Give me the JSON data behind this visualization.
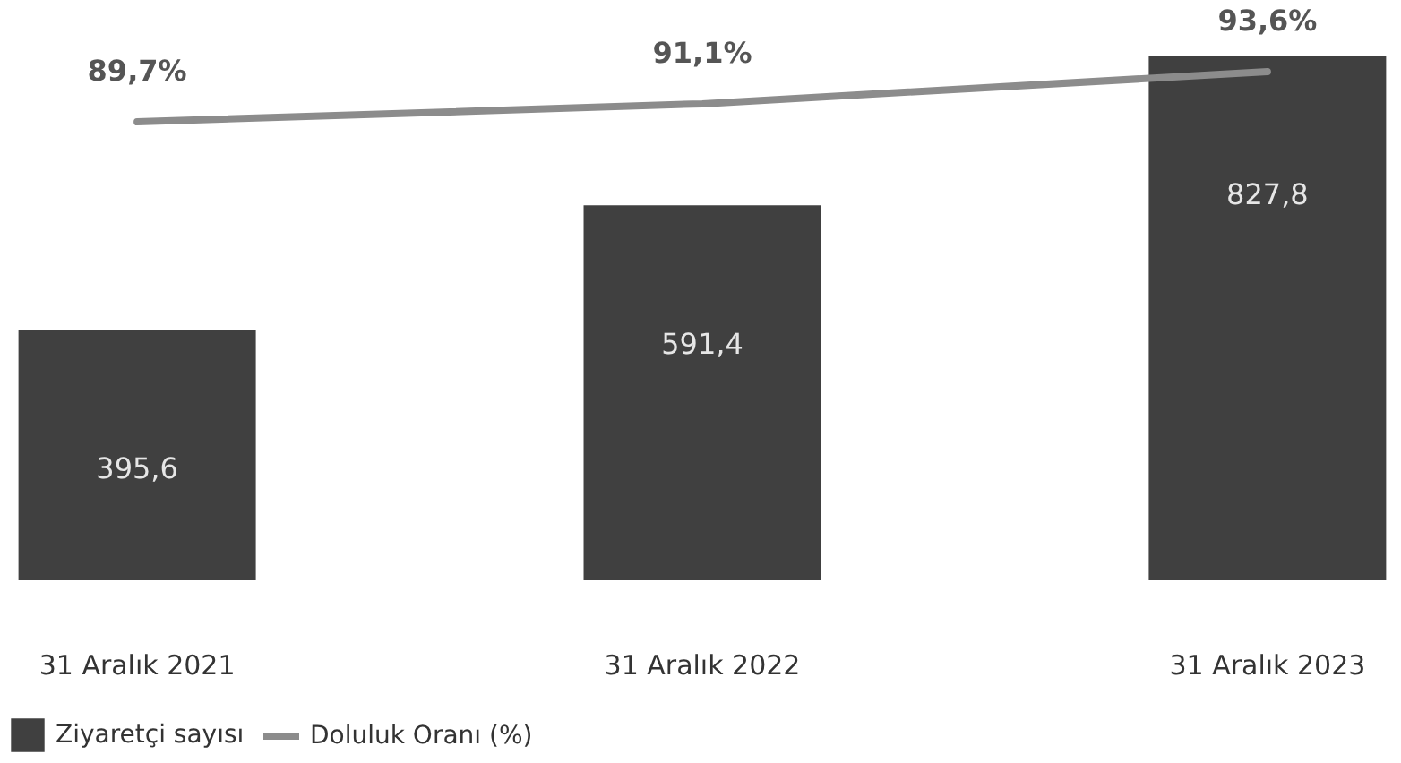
{
  "chart_data": {
    "type": "bar",
    "categories": [
      "31 Aralık 2021",
      "31 Aralık 2022",
      "31 Aralık 2023"
    ],
    "series": [
      {
        "name": "Ziyaretçi sayısı",
        "color": "#404040",
        "values": [
          395.6,
          591.4,
          827.8
        ],
        "value_labels": [
          "395,6",
          "591,4",
          "827,8"
        ]
      },
      {
        "name": "Doluluk Oranı (%)",
        "type": "line",
        "axis": "y2",
        "color": "#8c8c8c",
        "values": [
          89.7,
          91.1,
          93.6
        ],
        "value_labels": [
          "89,7%",
          "91,1%",
          "93,6%"
        ]
      }
    ],
    "tick_labels": "x",
    "legend": "bottom",
    "marker": "none"
  }
}
